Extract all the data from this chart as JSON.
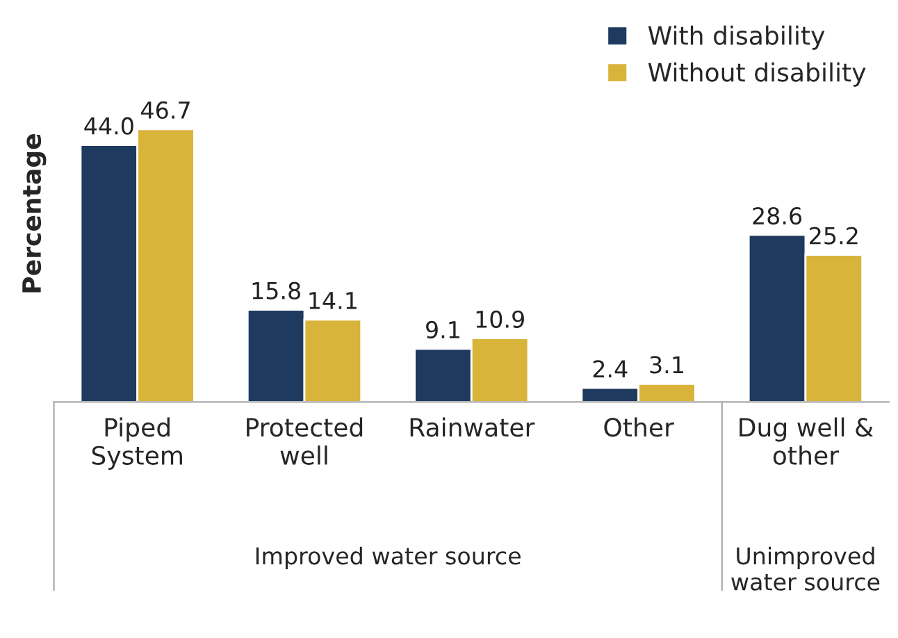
{
  "chart_data": {
    "type": "bar",
    "ylabel": "Percentage",
    "categories": [
      "Piped\nSystem",
      "Protected\nwell",
      "Rainwater",
      "Other",
      "Dug well &\nother"
    ],
    "series": [
      {
        "name": "With disability",
        "color": "#1f3a5f",
        "values": [
          44.0,
          15.8,
          9.1,
          2.4,
          28.6
        ],
        "value_labels": [
          "44.0",
          "15.8",
          "9.1",
          "2.4",
          "28.6"
        ]
      },
      {
        "name": "Without disability",
        "color": "#d9b43b",
        "values": [
          46.7,
          14.1,
          10.9,
          3.1,
          25.2
        ],
        "value_labels": [
          "46.7",
          "14.1",
          "10.9",
          "3.1",
          "25.2"
        ]
      }
    ],
    "legend": "top right",
    "grid": false,
    "annotations": [
      "Improved water source",
      "Unimproved\nwater source"
    ]
  }
}
